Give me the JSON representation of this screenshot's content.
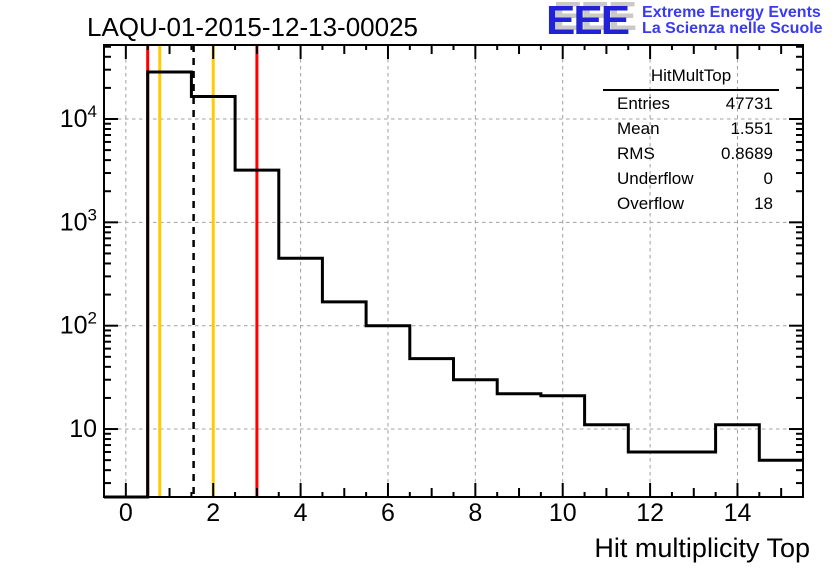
{
  "header": {
    "title": "LAQU-01-2015-12-13-00025",
    "logo": {
      "letters": "EEE",
      "line1": "Extreme Energy Events",
      "line2": "La Scienza nelle Scuole",
      "letter_color": "#2121d8",
      "text_color": "#3a3af2",
      "shadow_color": "#c9c9c9"
    }
  },
  "stats_box": {
    "title": "HitMultTop",
    "rows": [
      {
        "label": "Entries",
        "value": "47731"
      },
      {
        "label": "Mean",
        "value": "1.551"
      },
      {
        "label": "RMS",
        "value": "0.8689"
      },
      {
        "label": "Underflow",
        "value": "0"
      },
      {
        "label": "Overflow",
        "value": "18"
      }
    ]
  },
  "chart_data": {
    "type": "bar",
    "subtype": "step-histogram",
    "title": "LAQU-01-2015-12-13-00025",
    "xlabel": "Hit multiplicity Top",
    "ylabel": "",
    "x_range": [
      -0.5,
      15.5
    ],
    "y_scale": "log",
    "ylim": [
      2.2,
      52000
    ],
    "bin_centers": [
      0,
      1,
      2,
      3,
      4,
      5,
      6,
      7,
      8,
      9,
      10,
      11,
      12,
      13,
      14,
      15
    ],
    "bin_width": 1,
    "counts": [
      0,
      28500,
      16500,
      3200,
      450,
      170,
      100,
      48,
      30,
      22,
      21,
      11,
      6,
      6,
      11,
      5
    ],
    "x_major_ticks": [
      0,
      2,
      4,
      6,
      8,
      10,
      12,
      14
    ],
    "y_major_ticks": [
      10,
      100,
      1000,
      10000
    ],
    "grid": {
      "style": "dashed",
      "color": "#a0a0a0",
      "vertical_at": [
        0,
        2,
        4,
        6,
        8,
        10,
        12,
        14
      ],
      "horizontal_at": [
        10,
        100,
        1000,
        10000
      ]
    },
    "line_color": "#000000",
    "marker_lines": [
      {
        "x": 0.5,
        "color": "#ff0000",
        "style": "solid",
        "name": "red-threshold-low"
      },
      {
        "x": 0.776,
        "color": "#ffcc00",
        "style": "solid",
        "name": "yellow-threshold-low"
      },
      {
        "x": 1.551,
        "color": "#000000",
        "style": "dashed",
        "name": "mean-line"
      },
      {
        "x": 2.0,
        "color": "#ffcc00",
        "style": "solid",
        "name": "yellow-threshold-high"
      },
      {
        "x": 3.0,
        "color": "#ff0000",
        "style": "solid",
        "name": "red-threshold-high"
      }
    ],
    "legend": null
  }
}
